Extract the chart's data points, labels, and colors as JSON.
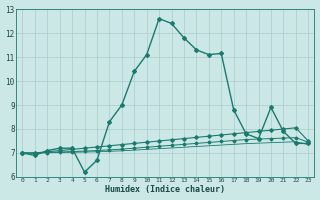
{
  "xlabel": "Humidex (Indice chaleur)",
  "ylabel": "",
  "xlim": [
    -0.5,
    23.5
  ],
  "ylim": [
    6,
    13
  ],
  "yticks": [
    6,
    7,
    8,
    9,
    10,
    11,
    12,
    13
  ],
  "xticks": [
    0,
    1,
    2,
    3,
    4,
    5,
    6,
    7,
    8,
    9,
    10,
    11,
    12,
    13,
    14,
    15,
    16,
    17,
    18,
    19,
    20,
    21,
    22,
    23
  ],
  "background_color": "#cce8e6",
  "grid_color": "#a8ccca",
  "line_color": "#1a7a6e",
  "line1_x": [
    0,
    1,
    2,
    3,
    4,
    5,
    6,
    7,
    8,
    9,
    10,
    11,
    12,
    13,
    14,
    15,
    16,
    17,
    18,
    19,
    20,
    21,
    22,
    23
  ],
  "line1_y": [
    7.0,
    6.9,
    7.1,
    7.2,
    7.2,
    6.2,
    6.7,
    8.3,
    9.0,
    10.4,
    11.1,
    12.6,
    12.4,
    11.8,
    11.3,
    11.1,
    11.15,
    8.8,
    7.8,
    7.6,
    8.9,
    7.9,
    7.4,
    7.4
  ],
  "line2_x": [
    0,
    1,
    2,
    3,
    4,
    5,
    6,
    7,
    8,
    9,
    10,
    11,
    12,
    13,
    14,
    15,
    16,
    17,
    18,
    19,
    20,
    21,
    22,
    23
  ],
  "line2_y": [
    7.0,
    7.0,
    7.05,
    7.1,
    7.15,
    7.2,
    7.25,
    7.3,
    7.35,
    7.4,
    7.45,
    7.5,
    7.55,
    7.6,
    7.65,
    7.7,
    7.75,
    7.8,
    7.85,
    7.9,
    7.95,
    8.0,
    8.05,
    7.5
  ],
  "line3_x": [
    0,
    1,
    2,
    3,
    4,
    5,
    6,
    7,
    8,
    9,
    10,
    11,
    12,
    13,
    14,
    15,
    16,
    17,
    18,
    19,
    20,
    21,
    22,
    23
  ],
  "line3_y": [
    7.0,
    7.0,
    7.02,
    7.04,
    7.06,
    7.08,
    7.1,
    7.13,
    7.16,
    7.2,
    7.24,
    7.28,
    7.32,
    7.36,
    7.4,
    7.44,
    7.48,
    7.52,
    7.56,
    7.58,
    7.6,
    7.62,
    7.64,
    7.45
  ],
  "line4_x": [
    0,
    1,
    2,
    3,
    4,
    5,
    6,
    7,
    8,
    9,
    10,
    11,
    12,
    13,
    14,
    15,
    16,
    17,
    18,
    19,
    20,
    21,
    22,
    23
  ],
  "line4_y": [
    7.0,
    7.0,
    7.01,
    7.02,
    7.03,
    7.04,
    7.05,
    7.07,
    7.09,
    7.12,
    7.15,
    7.18,
    7.21,
    7.24,
    7.27,
    7.3,
    7.33,
    7.36,
    7.39,
    7.41,
    7.43,
    7.45,
    7.47,
    7.35
  ]
}
